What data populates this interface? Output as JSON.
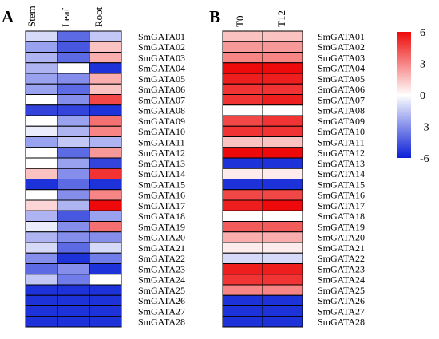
{
  "chart_data": [
    {
      "type": "heatmap",
      "panel": "A",
      "columns": [
        "Stem",
        "Leaf",
        "Root"
      ],
      "rows": [
        "SmGATA01",
        "SmGATA02",
        "SmGATA03",
        "SmGATA04",
        "SmGATA05",
        "SmGATA06",
        "SmGATA07",
        "SmGATA08",
        "SmGATA09",
        "SmGATA10",
        "SmGATA11",
        "SmGATA12",
        "SmGATA13",
        "SmGATA14",
        "SmGATA15",
        "SmGATA16",
        "SmGATA17",
        "SmGATA18",
        "SmGATA19",
        "SmGATA20",
        "SmGATA21",
        "SmGATA22",
        "SmGATA23",
        "SmGATA24",
        "SmGATA25",
        "SmGATA26",
        "SmGATA27",
        "SmGATA28"
      ],
      "values": [
        [
          -1.0,
          -4.0,
          -1.5
        ],
        [
          -2.5,
          -4.5,
          1.5
        ],
        [
          -2.0,
          -4.0,
          2.0
        ],
        [
          -2.0,
          0.0,
          -5.5
        ],
        [
          -2.5,
          -3.0,
          2.0
        ],
        [
          -2.5,
          -4.0,
          1.5
        ],
        [
          0.0,
          -3.0,
          4.5
        ],
        [
          -5.0,
          -5.0,
          -5.5
        ],
        [
          0.0,
          -2.5,
          3.5
        ],
        [
          -0.5,
          -2.0,
          3.0
        ],
        [
          -2.5,
          -1.5,
          -2.0
        ],
        [
          0.0,
          -4.0,
          2.5
        ],
        [
          0.0,
          -2.5,
          -5.0
        ],
        [
          1.5,
          -3.0,
          5.0
        ],
        [
          -5.5,
          -4.0,
          -5.5
        ],
        [
          0.0,
          -3.0,
          3.0
        ],
        [
          1.0,
          -2.0,
          6.0
        ],
        [
          -2.0,
          -4.5,
          -2.5
        ],
        [
          -0.5,
          -3.0,
          3.5
        ],
        [
          -2.0,
          -3.0,
          -3.0
        ],
        [
          -1.0,
          -4.0,
          -1.0
        ],
        [
          -3.0,
          -5.5,
          -3.5
        ],
        [
          -4.0,
          -3.0,
          -5.5
        ],
        [
          -1.5,
          -3.5,
          0.0
        ],
        [
          -5.5,
          -5.5,
          -5.5
        ],
        [
          -5.5,
          -5.5,
          -5.5
        ],
        [
          -5.5,
          -5.5,
          -5.5
        ],
        [
          -5.5,
          -5.5,
          -5.5
        ]
      ]
    },
    {
      "type": "heatmap",
      "panel": "B",
      "columns": [
        "T0",
        "T12"
      ],
      "rows": [
        "SmGATA01",
        "SmGATA02",
        "SmGATA03",
        "SmGATA04",
        "SmGATA05",
        "SmGATA06",
        "SmGATA07",
        "SmGATA08",
        "SmGATA09",
        "SmGATA10",
        "SmGATA11",
        "SmGATA12",
        "SmGATA13",
        "SmGATA14",
        "SmGATA15",
        "SmGATA16",
        "SmGATA17",
        "SmGATA18",
        "SmGATA19",
        "SmGATA20",
        "SmGATA21",
        "SmGATA22",
        "SmGATA23",
        "SmGATA24",
        "SmGATA25",
        "SmGATA26",
        "SmGATA27",
        "SmGATA28"
      ],
      "values": [
        [
          1.5,
          1.5
        ],
        [
          2.5,
          2.5
        ],
        [
          3.0,
          3.0
        ],
        [
          6.0,
          6.0
        ],
        [
          5.5,
          5.5
        ],
        [
          5.0,
          5.0
        ],
        [
          5.0,
          5.5
        ],
        [
          0.0,
          0.0
        ],
        [
          4.5,
          5.0
        ],
        [
          5.0,
          5.0
        ],
        [
          1.5,
          1.5
        ],
        [
          6.0,
          6.0
        ],
        [
          -5.5,
          -5.5
        ],
        [
          0.5,
          0.5
        ],
        [
          -5.5,
          -5.5
        ],
        [
          4.5,
          4.5
        ],
        [
          5.5,
          6.0
        ],
        [
          0.0,
          0.0
        ],
        [
          4.0,
          4.0
        ],
        [
          2.0,
          2.0
        ],
        [
          0.5,
          0.5
        ],
        [
          -1.0,
          -1.0
        ],
        [
          5.5,
          5.5
        ],
        [
          5.0,
          5.0
        ],
        [
          3.0,
          3.0
        ],
        [
          -5.5,
          -5.5
        ],
        [
          -5.5,
          -5.5
        ],
        [
          -5.5,
          -5.5
        ]
      ]
    }
  ],
  "colorbar": {
    "ticks": [
      6,
      3,
      0,
      -3,
      -6
    ],
    "labels": [
      "6",
      "3",
      "0",
      "-3",
      "-6"
    ],
    "min": -6,
    "max": 6,
    "colors": {
      "low": "#0a1fd6",
      "mid": "#ffffff",
      "high": "#ee0a0a"
    }
  },
  "panel_labels": [
    "A",
    "B"
  ]
}
